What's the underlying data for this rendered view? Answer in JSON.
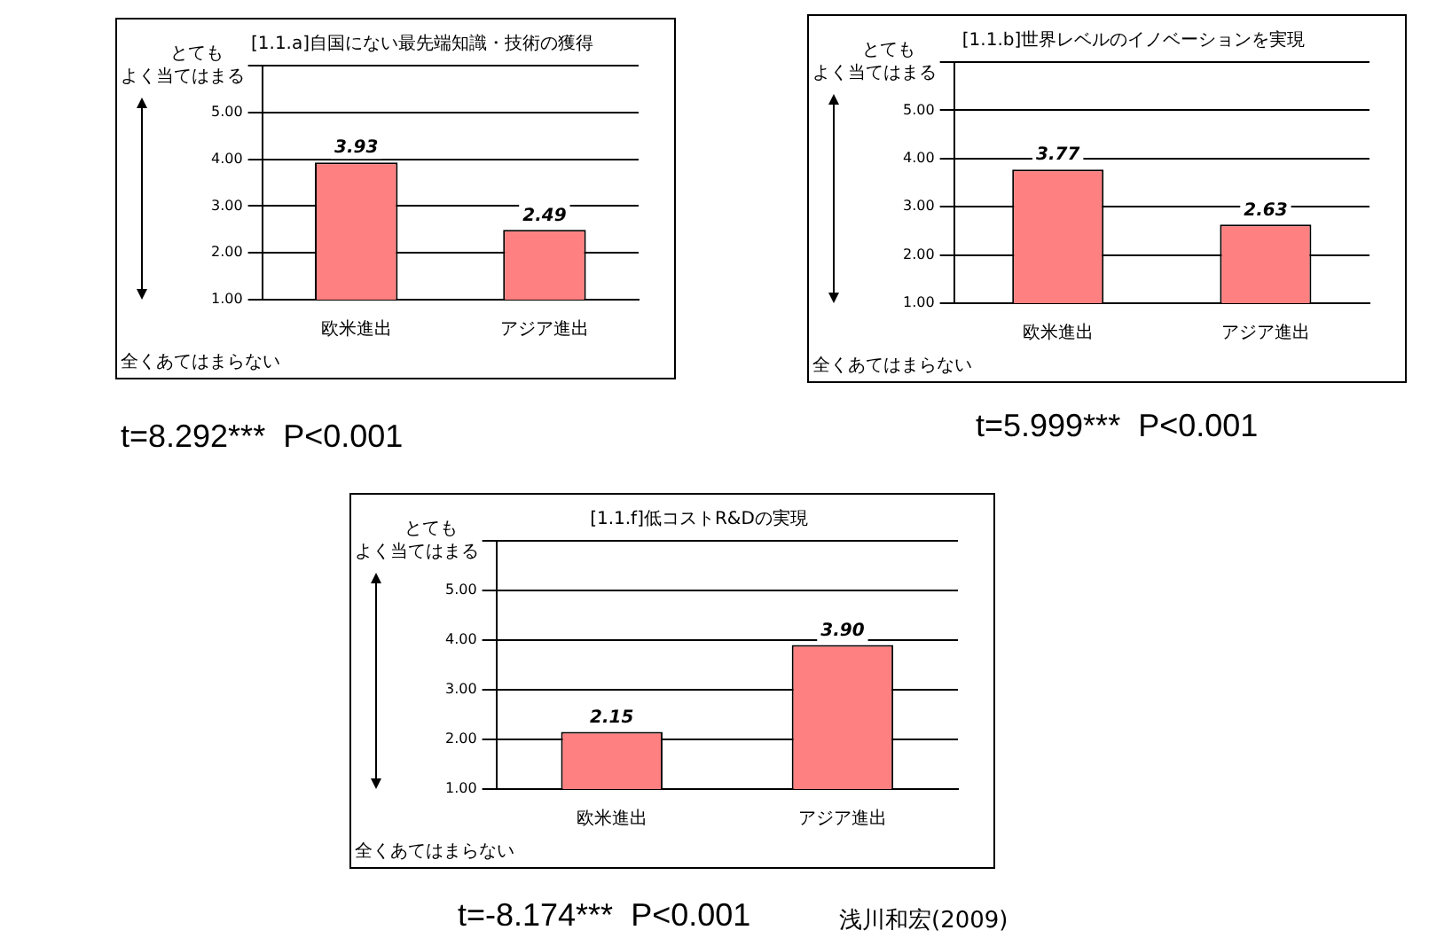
{
  "chart_data": [
    {
      "type": "bar",
      "title": "[1.1.a]自国にない最先端知識・技術の獲得",
      "categories": [
        "欧米進出",
        "アジア進出"
      ],
      "values": [
        3.93,
        2.49
      ],
      "color": "#ff8080",
      "value_labels": [
        "3.93",
        "2.49"
      ],
      "ylim": [
        1,
        6
      ],
      "yticks": [
        {
          "value": 1,
          "label": "1.00"
        },
        {
          "value": 2,
          "label": "2.00"
        },
        {
          "value": 3,
          "label": "3.00"
        },
        {
          "value": 4,
          "label": "4.00"
        },
        {
          "value": 5,
          "label": "5.00"
        },
        {
          "value": 6,
          "label": null
        }
      ],
      "grid": "y",
      "annotations": [
        "とても",
        "よく当てはまる",
        "全くあてはまらない",
        "t=8.292***  P<0.001"
      ]
    },
    {
      "type": "bar",
      "title": "[1.1.b]世界レベルのイノベーションを実現",
      "categories": [
        "欧米進出",
        "アジア進出"
      ],
      "values": [
        3.77,
        2.63
      ],
      "color": "#ff8080",
      "value_labels": [
        "3.77",
        "2.63"
      ],
      "ylim": [
        1,
        6
      ],
      "yticks": [
        {
          "value": 1,
          "label": "1.00"
        },
        {
          "value": 2,
          "label": "2.00"
        },
        {
          "value": 3,
          "label": "3.00"
        },
        {
          "value": 4,
          "label": "4.00"
        },
        {
          "value": 5,
          "label": "5.00"
        },
        {
          "value": 6,
          "label": null
        }
      ],
      "grid": "y",
      "annotations": [
        "とても",
        "よく当てはまる",
        "全くあてはまらない",
        "t=5.999***  P<0.001"
      ]
    },
    {
      "type": "bar",
      "title": "[1.1.f]低コストR&Dの実現",
      "categories": [
        "欧米進出",
        "アジア進出"
      ],
      "values": [
        2.15,
        3.9
      ],
      "color": "#ff8080",
      "value_labels": [
        "2.15",
        "3.90"
      ],
      "ylim": [
        1,
        6
      ],
      "yticks": [
        {
          "value": 1,
          "label": "1.00"
        },
        {
          "value": 2,
          "label": "2.00"
        },
        {
          "value": 3,
          "label": "3.00"
        },
        {
          "value": 4,
          "label": "4.00"
        },
        {
          "value": 5,
          "label": "5.00"
        },
        {
          "value": 6,
          "label": null
        }
      ],
      "grid": "y",
      "annotations": [
        "とても",
        "よく当てはまる",
        "全くあてはまらない",
        "t=-8.174***  P<0.001",
        "浅川和宏(2009)"
      ]
    }
  ]
}
